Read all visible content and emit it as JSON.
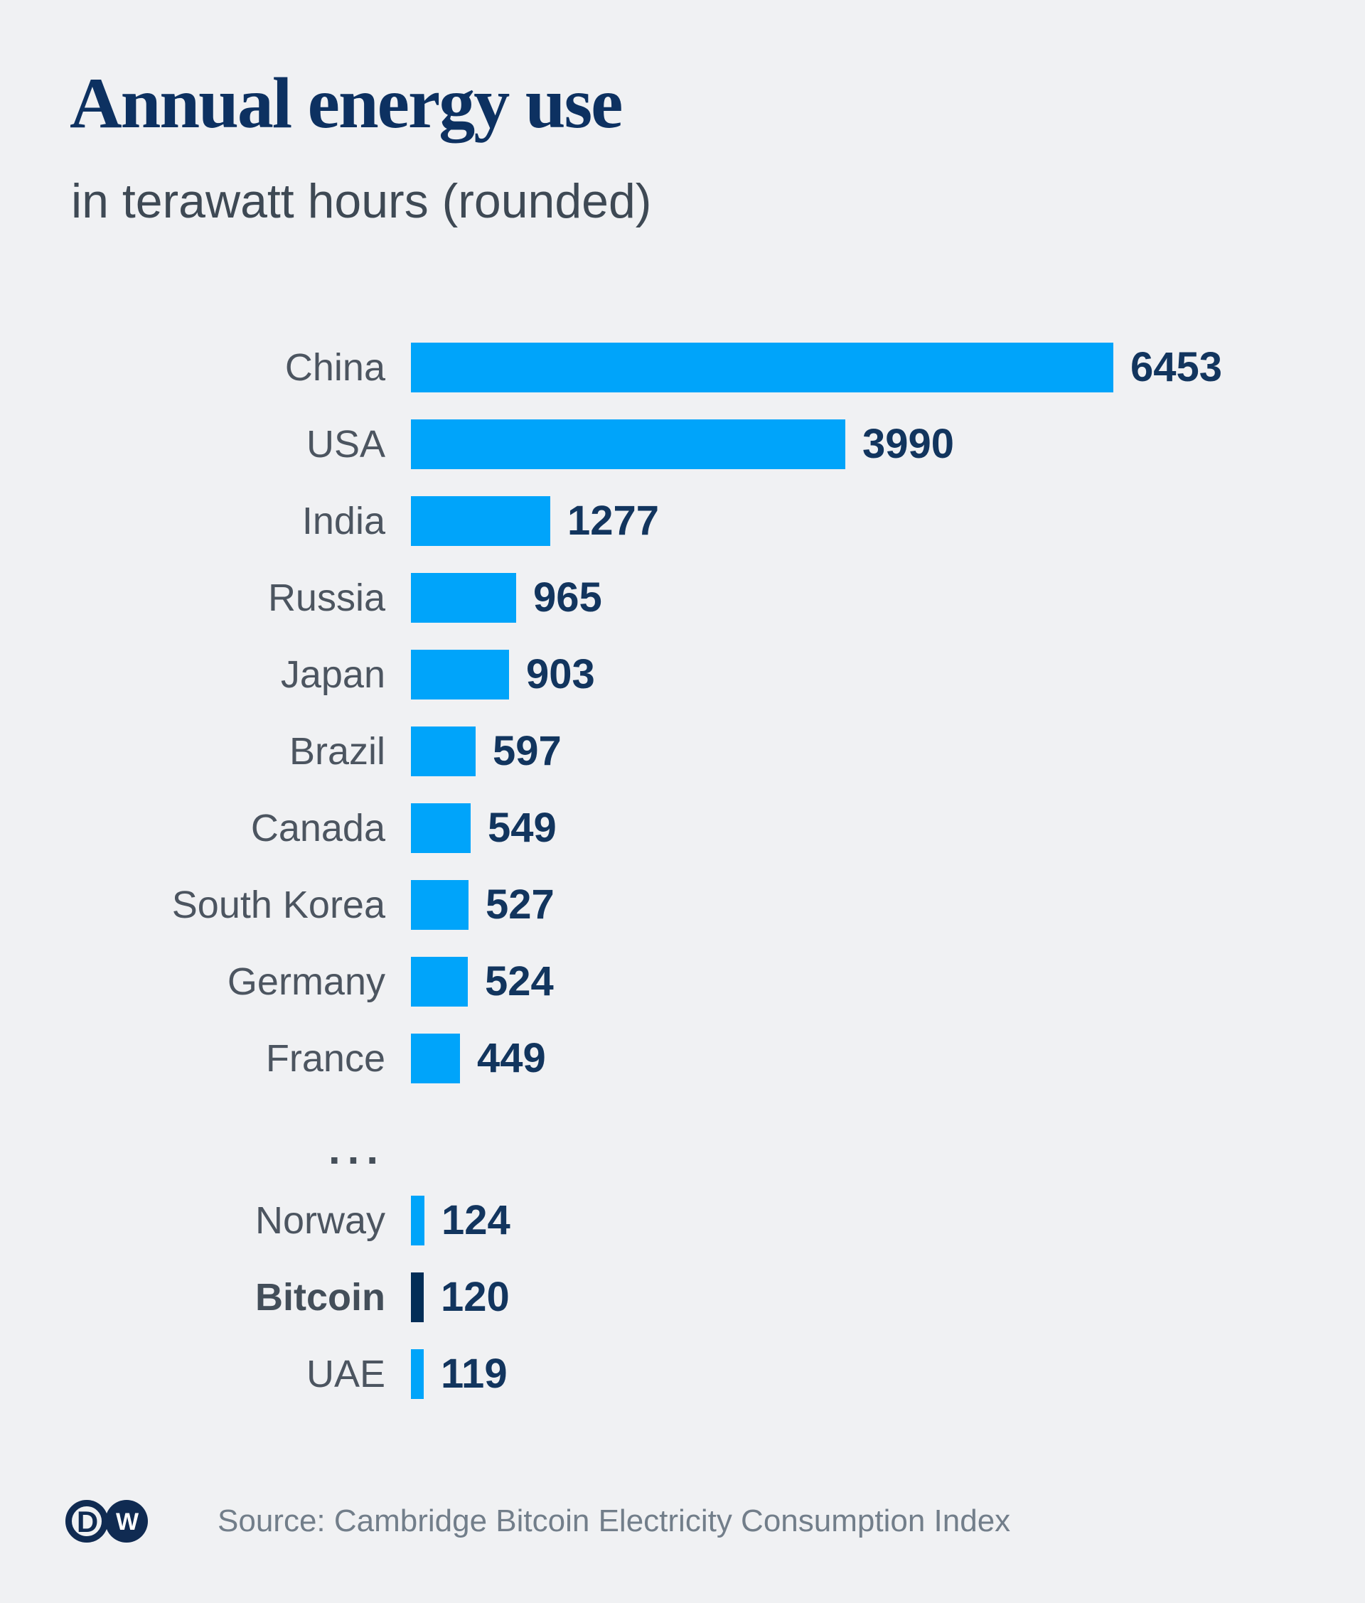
{
  "header": {
    "title": "Annual energy use",
    "subtitle": "in terawatt hours (rounded)"
  },
  "chart_data": {
    "type": "bar",
    "orientation": "horizontal",
    "title": "Annual energy use",
    "subtitle": "in terawatt hours (rounded)",
    "unit": "terawatt hours",
    "xlim": [
      0,
      6453
    ],
    "grid": false,
    "legend": false,
    "ellipsis": "...",
    "ellipsis_after_index": 9,
    "categories": [
      "China",
      "USA",
      "India",
      "Russia",
      "Japan",
      "Brazil",
      "Canada",
      "South Korea",
      "Germany",
      "France",
      "Norway",
      "Bitcoin",
      "UAE"
    ],
    "values": [
      6453,
      3990,
      1277,
      965,
      903,
      597,
      549,
      527,
      524,
      449,
      124,
      120,
      119
    ],
    "items": [
      {
        "label": "China",
        "value": 6453,
        "highlighted": false
      },
      {
        "label": "USA",
        "value": 3990,
        "highlighted": false
      },
      {
        "label": "India",
        "value": 1277,
        "highlighted": false
      },
      {
        "label": "Russia",
        "value": 965,
        "highlighted": false
      },
      {
        "label": "Japan",
        "value": 903,
        "highlighted": false
      },
      {
        "label": "Brazil",
        "value": 597,
        "highlighted": false
      },
      {
        "label": "Canada",
        "value": 549,
        "highlighted": false
      },
      {
        "label": "South Korea",
        "value": 527,
        "highlighted": false
      },
      {
        "label": "Germany",
        "value": 524,
        "highlighted": false
      },
      {
        "label": "France",
        "value": 449,
        "highlighted": false
      },
      {
        "label": "Norway",
        "value": 124,
        "highlighted": false
      },
      {
        "label": "Bitcoin",
        "value": 120,
        "highlighted": true
      },
      {
        "label": "UAE",
        "value": 119,
        "highlighted": false
      }
    ]
  },
  "colors": {
    "background": "#f0f1f3",
    "bar": "#00a4fa",
    "highlight_bar": "#032e57",
    "title": "#0d3161",
    "subtitle": "#3e4954",
    "label": "#4c5560",
    "value": "#12355e",
    "ellipsis": "#454f59",
    "source": "#727e8a",
    "logo": "#102b52"
  },
  "footer": {
    "source": "Source: Cambridge Bitcoin Electricity Consumption Index",
    "logo": {
      "left_letter": "D",
      "right_letter": "W"
    }
  }
}
